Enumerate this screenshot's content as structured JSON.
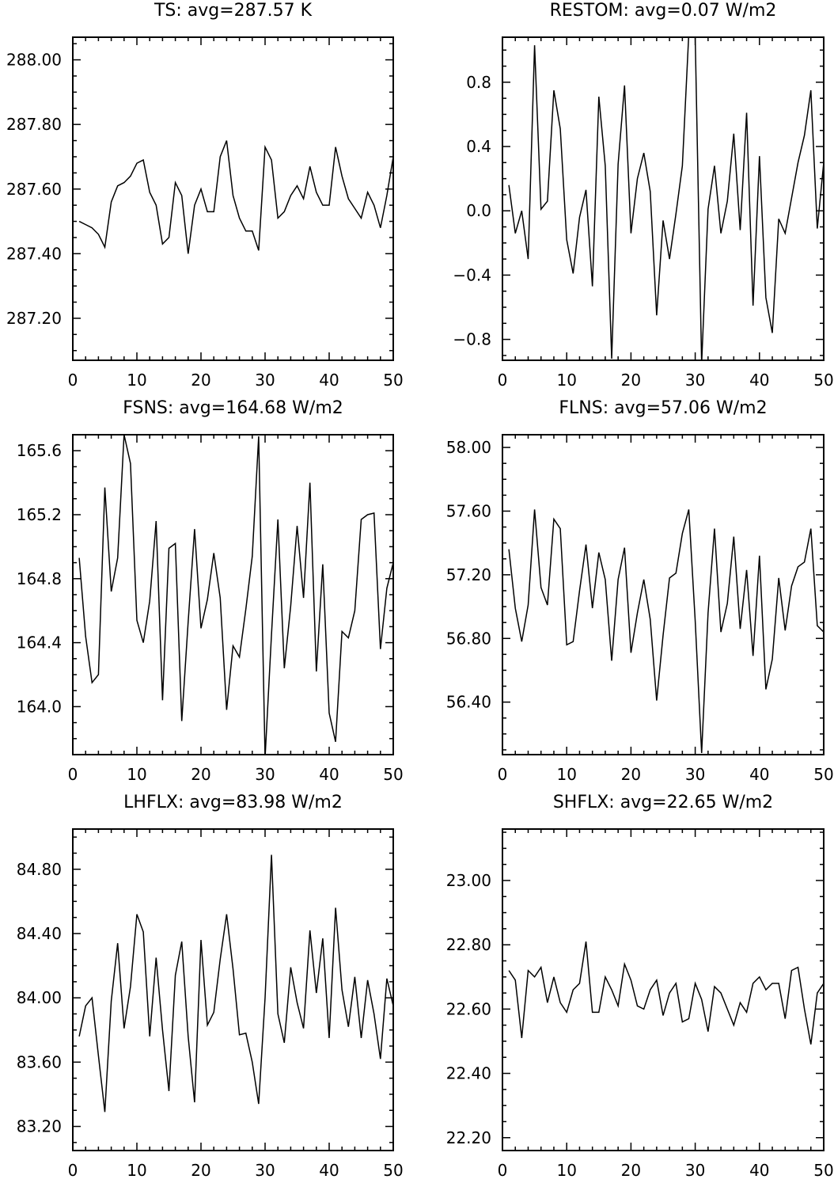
{
  "chart_data": [
    {
      "type": "line",
      "title": "TS: avg=287.57 K",
      "x": [
        1,
        2,
        3,
        4,
        5,
        6,
        7,
        8,
        9,
        10,
        11,
        12,
        13,
        14,
        15,
        16,
        17,
        18,
        19,
        20,
        21,
        22,
        23,
        24,
        25,
        26,
        27,
        28,
        29,
        30,
        31,
        32,
        33,
        34,
        35,
        36,
        37,
        38,
        39,
        40,
        41,
        42,
        43,
        44,
        45,
        46,
        47,
        48,
        49,
        50
      ],
      "y": [
        287.5,
        287.49,
        287.48,
        287.46,
        287.42,
        287.56,
        287.61,
        287.62,
        287.64,
        287.68,
        287.69,
        287.59,
        287.55,
        287.43,
        287.45,
        287.62,
        287.58,
        287.4,
        287.55,
        287.6,
        287.53,
        287.53,
        287.7,
        287.75,
        287.58,
        287.51,
        287.47,
        287.47,
        287.41,
        287.73,
        287.69,
        287.51,
        287.53,
        287.58,
        287.61,
        287.57,
        287.67,
        287.59,
        287.55,
        287.55,
        287.73,
        287.64,
        287.57,
        287.54,
        287.51,
        287.59,
        287.55,
        287.48,
        287.58,
        287.7
      ],
      "xlim": [
        0,
        50
      ],
      "ylim": [
        287.07,
        288.07
      ],
      "xticks": [
        "0",
        "10",
        "20",
        "30",
        "40",
        "50"
      ],
      "yticks": [
        "287.20",
        "287.40",
        "287.60",
        "287.80",
        "288.00"
      ],
      "ytick_values": [
        287.2,
        287.4,
        287.6,
        287.8,
        288.0
      ]
    },
    {
      "type": "line",
      "title": "RESTOM: avg=0.07 W/m2",
      "x": [
        1,
        2,
        3,
        4,
        5,
        6,
        7,
        8,
        9,
        10,
        11,
        12,
        13,
        14,
        15,
        16,
        17,
        18,
        19,
        20,
        21,
        22,
        23,
        24,
        25,
        26,
        27,
        28,
        29,
        30,
        31,
        32,
        33,
        34,
        35,
        36,
        37,
        38,
        39,
        40,
        41,
        42,
        43,
        44,
        45,
        46,
        47,
        48,
        49,
        50
      ],
      "y": [
        0.16,
        -0.14,
        0.0,
        -0.3,
        1.03,
        0.01,
        0.06,
        0.75,
        0.51,
        -0.18,
        -0.39,
        -0.04,
        0.13,
        -0.47,
        0.71,
        0.28,
        -0.92,
        0.29,
        0.78,
        -0.14,
        0.2,
        0.36,
        0.12,
        -0.65,
        -0.06,
        -0.3,
        -0.02,
        0.28,
        1.1,
        1.08,
        -0.95,
        0.01,
        0.28,
        -0.14,
        0.06,
        0.48,
        -0.12,
        0.61,
        -0.59,
        0.34,
        -0.54,
        -0.76,
        -0.05,
        -0.14,
        0.08,
        0.3,
        0.47,
        0.75,
        -0.11,
        0.3
      ],
      "xlim": [
        0,
        50
      ],
      "ylim": [
        -0.93,
        1.08
      ],
      "xticks": [
        "0",
        "10",
        "20",
        "30",
        "40",
        "50"
      ],
      "yticks": [
        "−0.8",
        "−0.4",
        "0.0",
        "0.4",
        "0.8"
      ],
      "ytick_values": [
        -0.8,
        -0.4,
        0.0,
        0.4,
        0.8
      ]
    },
    {
      "type": "line",
      "title": "FSNS: avg=164.68 W/m2",
      "x": [
        1,
        2,
        3,
        4,
        5,
        6,
        7,
        8,
        9,
        10,
        11,
        12,
        13,
        14,
        15,
        16,
        17,
        18,
        19,
        20,
        21,
        22,
        23,
        24,
        25,
        26,
        27,
        28,
        29,
        30,
        31,
        32,
        33,
        34,
        35,
        36,
        37,
        38,
        39,
        40,
        41,
        42,
        43,
        44,
        45,
        46,
        47,
        48,
        49,
        50
      ],
      "y": [
        164.93,
        164.44,
        164.15,
        164.2,
        165.37,
        164.72,
        164.93,
        165.7,
        165.52,
        164.54,
        164.4,
        164.66,
        165.16,
        164.04,
        164.99,
        165.02,
        163.91,
        164.53,
        165.11,
        164.49,
        164.67,
        164.96,
        164.68,
        163.98,
        164.38,
        164.31,
        164.61,
        164.94,
        165.69,
        163.68,
        164.45,
        165.17,
        164.24,
        164.63,
        165.13,
        164.68,
        165.4,
        164.22,
        164.89,
        163.96,
        163.78,
        164.47,
        164.43,
        164.6,
        165.17,
        165.2,
        165.21,
        164.36,
        164.74,
        164.9
      ],
      "xlim": [
        0,
        50
      ],
      "ylim": [
        163.7,
        165.7
      ],
      "xticks": [
        "0",
        "10",
        "20",
        "30",
        "40",
        "50"
      ],
      "yticks": [
        "164.0",
        "164.4",
        "164.8",
        "165.2",
        "165.6"
      ],
      "ytick_values": [
        164.0,
        164.4,
        164.8,
        165.2,
        165.6
      ]
    },
    {
      "type": "line",
      "title": "FLNS: avg=57.06 W/m2",
      "x": [
        1,
        2,
        3,
        4,
        5,
        6,
        7,
        8,
        9,
        10,
        11,
        12,
        13,
        14,
        15,
        16,
        17,
        18,
        19,
        20,
        21,
        22,
        23,
        24,
        25,
        26,
        27,
        28,
        29,
        30,
        31,
        32,
        33,
        34,
        35,
        36,
        37,
        38,
        39,
        40,
        41,
        42,
        43,
        44,
        45,
        46,
        47,
        48,
        49,
        50
      ],
      "y": [
        57.36,
        56.99,
        56.78,
        57.01,
        57.61,
        57.12,
        57.01,
        57.55,
        57.49,
        56.76,
        56.78,
        57.1,
        57.39,
        56.99,
        57.34,
        57.17,
        56.66,
        57.17,
        57.37,
        56.71,
        56.96,
        57.17,
        56.92,
        56.41,
        56.82,
        57.18,
        57.21,
        57.46,
        57.61,
        56.91,
        56.08,
        56.96,
        57.49,
        56.84,
        57.02,
        57.44,
        56.86,
        57.23,
        56.69,
        57.32,
        56.48,
        56.67,
        57.18,
        56.85,
        57.13,
        57.25,
        57.28,
        57.49,
        56.88,
        56.84
      ],
      "xlim": [
        0,
        50
      ],
      "ylim": [
        56.07,
        58.08
      ],
      "xticks": [
        "0",
        "10",
        "20",
        "30",
        "40",
        "50"
      ],
      "yticks": [
        "56.40",
        "56.80",
        "57.20",
        "57.60",
        "58.00"
      ],
      "ytick_values": [
        56.4,
        56.8,
        57.2,
        57.6,
        58.0
      ]
    },
    {
      "type": "line",
      "title": "LHFLX: avg=83.98 W/m2",
      "x": [
        1,
        2,
        3,
        4,
        5,
        6,
        7,
        8,
        9,
        10,
        11,
        12,
        13,
        14,
        15,
        16,
        17,
        18,
        19,
        20,
        21,
        22,
        23,
        24,
        25,
        26,
        27,
        28,
        29,
        30,
        31,
        32,
        33,
        34,
        35,
        36,
        37,
        38,
        39,
        40,
        41,
        42,
        43,
        44,
        45,
        46,
        47,
        48,
        49,
        50
      ],
      "y": [
        83.76,
        83.95,
        84.0,
        83.64,
        83.29,
        83.98,
        84.34,
        83.81,
        84.07,
        84.52,
        84.41,
        83.76,
        84.25,
        83.8,
        83.42,
        84.14,
        84.35,
        83.76,
        83.35,
        84.36,
        83.83,
        83.91,
        84.24,
        84.52,
        84.18,
        83.77,
        83.78,
        83.6,
        83.34,
        84.0,
        84.89,
        83.9,
        83.72,
        84.19,
        83.97,
        83.81,
        84.42,
        84.03,
        84.37,
        83.75,
        84.56,
        84.05,
        83.82,
        84.13,
        83.75,
        84.11,
        83.9,
        83.62,
        84.12,
        83.95
      ],
      "xlim": [
        0,
        50
      ],
      "ylim": [
        83.05,
        85.05
      ],
      "xticks": [
        "0",
        "10",
        "20",
        "30",
        "40",
        "50"
      ],
      "yticks": [
        "83.20",
        "83.60",
        "84.00",
        "84.40",
        "84.80"
      ],
      "ytick_values": [
        83.2,
        83.6,
        84.0,
        84.4,
        84.8
      ]
    },
    {
      "type": "line",
      "title": "SHFLX: avg=22.65 W/m2",
      "x": [
        1,
        2,
        3,
        4,
        5,
        6,
        7,
        8,
        9,
        10,
        11,
        12,
        13,
        14,
        15,
        16,
        17,
        18,
        19,
        20,
        21,
        22,
        23,
        24,
        25,
        26,
        27,
        28,
        29,
        30,
        31,
        32,
        33,
        34,
        35,
        36,
        37,
        38,
        39,
        40,
        41,
        42,
        43,
        44,
        45,
        46,
        47,
        48,
        49,
        50
      ],
      "y": [
        22.72,
        22.69,
        22.51,
        22.72,
        22.7,
        22.73,
        22.62,
        22.7,
        22.62,
        22.59,
        22.66,
        22.68,
        22.81,
        22.59,
        22.59,
        22.7,
        22.66,
        22.61,
        22.74,
        22.69,
        22.61,
        22.6,
        22.66,
        22.69,
        22.58,
        22.65,
        22.68,
        22.56,
        22.57,
        22.68,
        22.63,
        22.53,
        22.67,
        22.65,
        22.6,
        22.55,
        22.62,
        22.59,
        22.68,
        22.7,
        22.66,
        22.68,
        22.68,
        22.57,
        22.72,
        22.73,
        22.6,
        22.49,
        22.65,
        22.68
      ],
      "xlim": [
        0,
        50
      ],
      "ylim": [
        22.16,
        23.16
      ],
      "xticks": [
        "0",
        "10",
        "20",
        "30",
        "40",
        "50"
      ],
      "yticks": [
        "22.20",
        "22.40",
        "22.60",
        "22.80",
        "23.00"
      ],
      "ytick_values": [
        22.2,
        22.4,
        22.6,
        22.8,
        23.0
      ]
    }
  ]
}
